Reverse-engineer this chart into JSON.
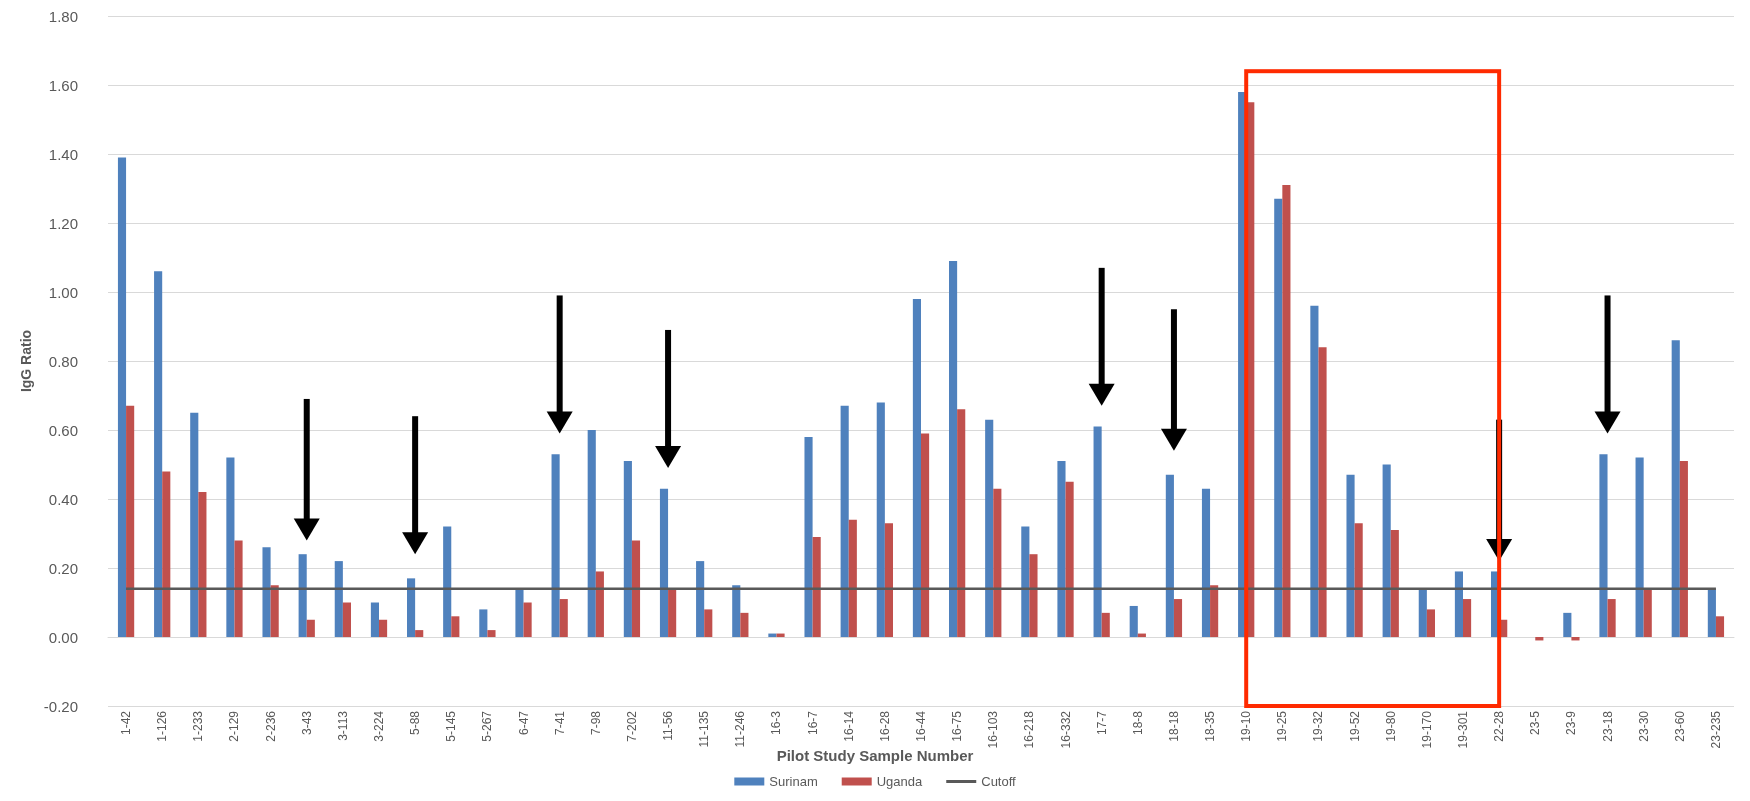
{
  "chart_data": {
    "type": "bar",
    "xlabel": "Pilot Study Sample Number",
    "ylabel": "IgG Ratio",
    "categories": [
      "1-42",
      "1-126",
      "1-233",
      "2-129",
      "2-236",
      "3-43",
      "3-113",
      "3-224",
      "5-88",
      "5-145",
      "5-267",
      "6-47",
      "7-41",
      "7-98",
      "7-202",
      "11-56",
      "11-135",
      "11-246",
      "16-3",
      "16-7",
      "16-14",
      "16-28",
      "16-44",
      "16-75",
      "16-103",
      "16-218",
      "16-332",
      "17-7",
      "18-8",
      "18-18",
      "18-35",
      "19-10",
      "19-25",
      "19-32",
      "19-52",
      "19-80",
      "19-170",
      "19-301",
      "22-28",
      "23-5",
      "23-9",
      "23-18",
      "23-30",
      "23-60",
      "23-235"
    ],
    "series": [
      {
        "name": "Surinam",
        "color": "#4f81bd",
        "values": [
          1.39,
          1.06,
          0.65,
          0.52,
          0.26,
          0.24,
          0.22,
          0.1,
          0.17,
          0.32,
          0.08,
          0.14,
          0.53,
          0.6,
          0.51,
          0.43,
          0.22,
          0.15,
          0.01,
          0.58,
          0.67,
          0.68,
          0.98,
          1.09,
          0.63,
          0.32,
          0.51,
          0.61,
          0.09,
          0.47,
          0.43,
          1.58,
          1.27,
          0.96,
          0.47,
          0.5,
          0.14,
          0.19,
          0.19,
          0,
          0.07,
          0.53,
          0.52,
          0.86,
          0.14
        ]
      },
      {
        "name": "Uganda",
        "color": "#c0504d",
        "values": [
          0.67,
          0.48,
          0.42,
          0.28,
          0.15,
          0.05,
          0.1,
          0.05,
          0.02,
          0.06,
          0.02,
          0.1,
          0.11,
          0.19,
          0.28,
          0.14,
          0.08,
          0.07,
          0.01,
          0.29,
          0.34,
          0.33,
          0.59,
          0.66,
          0.43,
          0.24,
          0.45,
          0.07,
          0.01,
          0.11,
          0.15,
          1.55,
          1.31,
          0.84,
          0.33,
          0.31,
          0.08,
          0.11,
          0.05,
          -0.01,
          -0.01,
          0.11,
          0.14,
          0.51,
          0.06
        ]
      },
      {
        "name": "Cutoff",
        "type": "line",
        "color": "#595959",
        "marker": "none",
        "values": [
          0.14,
          0.14,
          0.14,
          0.14,
          0.14,
          0.14,
          0.14,
          0.14,
          0.14,
          0.14,
          0.14,
          0.14,
          0.14,
          0.14,
          0.14,
          0.14,
          0.14,
          0.14,
          0.14,
          0.14,
          0.14,
          0.14,
          0.14,
          0.14,
          0.14,
          0.14,
          0.14,
          0.14,
          0.14,
          0.14,
          0.14,
          0.14,
          0.14,
          0.14,
          0.14,
          0.14,
          0.14,
          0.14,
          0.14,
          0.14,
          0.14,
          0.14,
          0.14,
          0.14,
          0.14
        ]
      }
    ],
    "ylim": [
      -0.2,
      1.8
    ],
    "yticks": [
      {
        "value": -0.2,
        "label": "-0.20"
      },
      {
        "value": 0,
        "label": "0.00"
      },
      {
        "value": 0.2,
        "label": "0.20"
      },
      {
        "value": 0.4,
        "label": "0.40"
      },
      {
        "value": 0.6,
        "label": "0.60"
      },
      {
        "value": 0.8,
        "label": "0.80"
      },
      {
        "value": 1,
        "label": "1.00"
      },
      {
        "value": 1.2,
        "label": "1.20"
      },
      {
        "value": 1.4,
        "label": "1.40"
      },
      {
        "value": 1.6,
        "label": "1.60"
      },
      {
        "value": 1.8,
        "label": "1.80"
      }
    ],
    "grid": "y",
    "legend": "bottom"
  }
}
